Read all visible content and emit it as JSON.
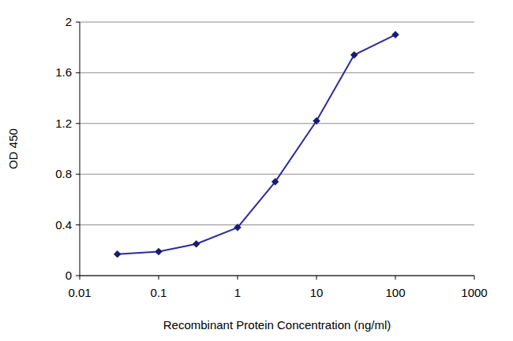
{
  "chart_data": {
    "type": "line",
    "x_label": "Recombinant Protein Concentration (ng/ml)",
    "y_label": "OD 450",
    "x": [
      0.03,
      0.1,
      0.3,
      1,
      3,
      10,
      30,
      100
    ],
    "values": [
      0.17,
      0.19,
      0.25,
      0.38,
      0.74,
      1.22,
      1.74,
      1.9
    ],
    "color": "#2b2b9e",
    "marker": "diamond",
    "log": "x",
    "grid": true,
    "xlim": [
      0.01,
      1000
    ],
    "xticks": [
      0.01,
      0.1,
      1,
      10,
      100,
      1000
    ],
    "ylim": [
      0,
      2
    ],
    "yticks": [
      0,
      0.4,
      0.8,
      1.2,
      1.6,
      2
    ]
  }
}
